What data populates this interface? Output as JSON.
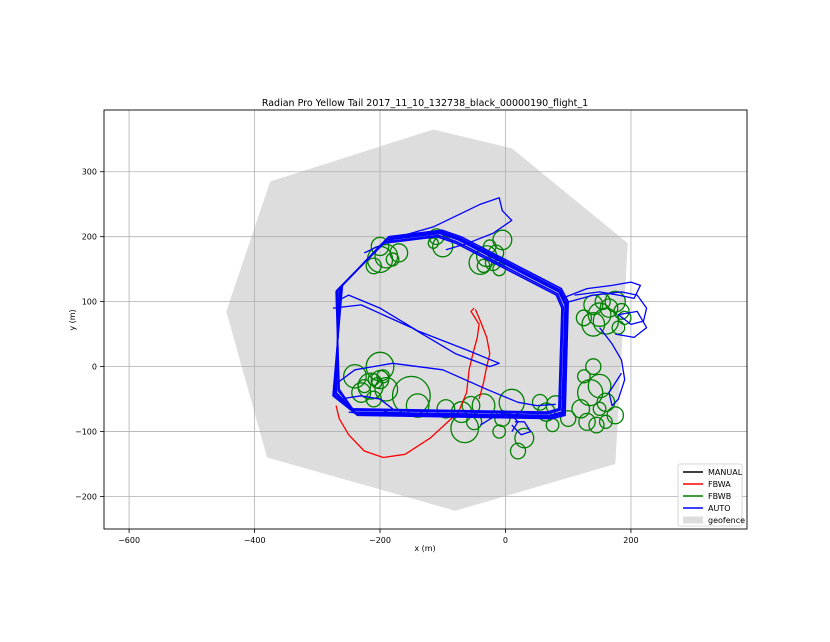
{
  "chart_data": {
    "type": "line",
    "title": "Radian Pro Yellow Tail 2017_11_10_132738_black_00000190_flight_1",
    "xlabel": "x (m)",
    "ylabel": "y (m)",
    "xlim": [
      -640,
      385
    ],
    "ylim": [
      -250,
      395
    ],
    "xticks": [
      -600,
      -400,
      -200,
      0,
      200
    ],
    "yticks": [
      -200,
      -100,
      0,
      100,
      200,
      300
    ],
    "xticklabels": [
      "−600",
      "−400",
      "−200",
      "0",
      "200"
    ],
    "yticklabels": [
      "−200",
      "−100",
      "0",
      "100",
      "200",
      "300"
    ],
    "grid": true,
    "legend_position": "lower-right",
    "legend": [
      {
        "label": "MANUAL",
        "color": "#000000",
        "kind": "line"
      },
      {
        "label": "FBWA",
        "color": "#ff0000",
        "kind": "line"
      },
      {
        "label": "FBWB",
        "color": "#008000",
        "kind": "line"
      },
      {
        "label": "AUTO",
        "color": "#0000ff",
        "kind": "line"
      },
      {
        "label": "geofence",
        "color": "#dddddd",
        "kind": "patch"
      }
    ],
    "geofence": [
      [
        -115,
        365
      ],
      [
        10,
        336
      ],
      [
        195,
        190
      ],
      [
        175,
        -150
      ],
      [
        -80,
        -222
      ],
      [
        -380,
        -140
      ],
      [
        -445,
        85
      ],
      [
        -375,
        285
      ]
    ],
    "series": [
      {
        "name": "AUTO",
        "color": "#0000ff",
        "loops": [
          [
            [
              -265,
              120
            ],
            [
              -190,
              195
            ],
            [
              -105,
              205
            ],
            [
              -75,
              195
            ],
            [
              85,
              115
            ],
            [
              95,
              95
            ],
            [
              90,
              -70
            ],
            [
              70,
              -75
            ],
            [
              -240,
              -70
            ],
            [
              -270,
              -40
            ],
            [
              -265,
              120
            ]
          ],
          [
            [
              -262,
              123
            ],
            [
              -188,
              198
            ],
            [
              -103,
              208
            ],
            [
              -73,
              198
            ],
            [
              87,
              118
            ],
            [
              98,
              98
            ],
            [
              93,
              -73
            ],
            [
              72,
              -78
            ],
            [
              -238,
              -73
            ],
            [
              -273,
              -43
            ],
            [
              -262,
              123
            ]
          ],
          [
            [
              -268,
              118
            ],
            [
              -192,
              192
            ],
            [
              -107,
              202
            ],
            [
              -77,
              192
            ],
            [
              83,
              112
            ],
            [
              92,
              92
            ],
            [
              87,
              -67
            ],
            [
              68,
              -72
            ],
            [
              -242,
              -67
            ],
            [
              -267,
              -37
            ],
            [
              -268,
              118
            ]
          ],
          [
            [
              -260,
              125
            ],
            [
              -186,
              200
            ],
            [
              -101,
              210
            ],
            [
              -71,
              200
            ],
            [
              89,
              120
            ],
            [
              100,
              100
            ],
            [
              95,
              -75
            ],
            [
              74,
              -80
            ],
            [
              -236,
              -75
            ],
            [
              -275,
              -45
            ],
            [
              -260,
              125
            ]
          ],
          [
            [
              -270,
              116
            ],
            [
              -194,
              190
            ],
            [
              -109,
              200
            ],
            [
              -79,
              190
            ],
            [
              81,
              110
            ],
            [
              90,
              90
            ],
            [
              85,
              -65
            ],
            [
              66,
              -70
            ],
            [
              -244,
              -65
            ],
            [
              -265,
              -35
            ],
            [
              -270,
              116
            ]
          ],
          [
            [
              -264,
              121
            ],
            [
              -190,
              196
            ],
            [
              -104,
              206
            ],
            [
              -74,
              196
            ],
            [
              86,
              116
            ],
            [
              96,
              96
            ],
            [
              91,
              -71
            ],
            [
              70,
              -76
            ],
            [
              -239,
              -71
            ],
            [
              -271,
              -41
            ],
            [
              -264,
              121
            ]
          ]
        ],
        "paths": [
          [
            [
              -225,
              175
            ],
            [
              -170,
              200
            ],
            [
              -115,
              215
            ],
            [
              -40,
              250
            ],
            [
              -10,
              260
            ],
            [
              -5,
              240
            ],
            [
              10,
              225
            ],
            [
              -20,
              205
            ],
            [
              -60,
              190
            ],
            [
              -95,
              180
            ]
          ],
          [
            [
              -270,
              100
            ],
            [
              -250,
              110
            ],
            [
              -200,
              90
            ],
            [
              -140,
              55
            ],
            [
              -60,
              25
            ],
            [
              -10,
              5
            ],
            [
              -25,
              0
            ],
            [
              -80,
              20
            ],
            [
              -150,
              60
            ],
            [
              -230,
              95
            ],
            [
              -275,
              90
            ]
          ],
          [
            [
              -275,
              -30
            ],
            [
              -240,
              -5
            ],
            [
              -180,
              5
            ],
            [
              -100,
              -5
            ],
            [
              -30,
              -35
            ],
            [
              20,
              -55
            ],
            [
              50,
              -60
            ],
            [
              80,
              -58
            ]
          ],
          [
            [
              -265,
              -50
            ],
            [
              -230,
              -45
            ],
            [
              -200,
              -50
            ],
            [
              -180,
              -65
            ],
            [
              -205,
              -75
            ],
            [
              -250,
              -70
            ]
          ],
          [
            [
              90,
              105
            ],
            [
              130,
              120
            ],
            [
              170,
              125
            ],
            [
              200,
              130
            ],
            [
              215,
              125
            ],
            [
              205,
              105
            ],
            [
              180,
              110
            ],
            [
              150,
              115
            ],
            [
              110,
              110
            ]
          ],
          [
            [
              95,
              98
            ],
            [
              140,
              110
            ],
            [
              185,
              115
            ],
            [
              210,
              110
            ],
            [
              225,
              90
            ],
            [
              220,
              70
            ],
            [
              200,
              65
            ],
            [
              180,
              80
            ],
            [
              210,
              85
            ],
            [
              225,
              60
            ],
            [
              205,
              45
            ],
            [
              175,
              50
            ]
          ],
          [
            [
              150,
              60
            ],
            [
              170,
              35
            ],
            [
              185,
              10
            ],
            [
              190,
              -20
            ],
            [
              180,
              -50
            ],
            [
              170,
              -60
            ],
            [
              165,
              -40
            ],
            [
              175,
              -25
            ],
            [
              185,
              -10
            ]
          ],
          [
            [
              10,
              -90
            ],
            [
              25,
              -105
            ],
            [
              40,
              -100
            ],
            [
              30,
              -85
            ],
            [
              15,
              -85
            ]
          ],
          [
            [
              -40,
              -90
            ],
            [
              -15,
              -75
            ],
            [
              5,
              -70
            ],
            [
              20,
              -85
            ],
            [
              10,
              -100
            ]
          ]
        ]
      },
      {
        "name": "FBWA",
        "color": "#ff0000",
        "paths": [
          [
            [
              -50,
              90
            ],
            [
              -55,
              85
            ],
            [
              -42,
              65
            ],
            [
              -45,
              45
            ],
            [
              -52,
              20
            ],
            [
              -58,
              -5
            ],
            [
              -62,
              -40
            ],
            [
              -75,
              -70
            ],
            [
              -120,
              -110
            ],
            [
              -160,
              -135
            ],
            [
              -195,
              -140
            ],
            [
              -225,
              -130
            ],
            [
              -250,
              -105
            ],
            [
              -265,
              -80
            ],
            [
              -270,
              -60
            ]
          ],
          [
            [
              -48,
              88
            ],
            [
              -40,
              70
            ],
            [
              -30,
              45
            ],
            [
              -25,
              20
            ],
            [
              -30,
              0
            ],
            [
              -35,
              -25
            ],
            [
              -42,
              -50
            ]
          ]
        ]
      },
      {
        "name": "FBWB",
        "color": "#008000",
        "circles": [
          [
            -190,
            170,
            18
          ],
          [
            -200,
            185,
            14
          ],
          [
            -210,
            155,
            12
          ],
          [
            -180,
            165,
            10
          ],
          [
            -200,
            165,
            20
          ],
          [
            -170,
            175,
            14
          ],
          [
            -110,
            200,
            12
          ],
          [
            -100,
            185,
            16
          ],
          [
            -115,
            190,
            8
          ],
          [
            -25,
            185,
            10
          ],
          [
            -30,
            170,
            16
          ],
          [
            -40,
            160,
            18
          ],
          [
            -5,
            195,
            15
          ],
          [
            -15,
            175,
            12
          ],
          [
            -20,
            160,
            12
          ],
          [
            -10,
            150,
            10
          ],
          [
            -35,
            155,
            10
          ],
          [
            -200,
            -20,
            14
          ],
          [
            -215,
            -30,
            20
          ],
          [
            -190,
            -35,
            18
          ],
          [
            -230,
            -40,
            15
          ],
          [
            -210,
            -50,
            12
          ],
          [
            -200,
            0,
            22
          ],
          [
            -240,
            -15,
            18
          ],
          [
            -225,
            -30,
            10
          ],
          [
            -205,
            -25,
            8
          ],
          [
            -195,
            -15,
            10
          ],
          [
            -210,
            -20,
            9
          ],
          [
            -150,
            -45,
            30
          ],
          [
            -140,
            -60,
            18
          ],
          [
            -95,
            -65,
            14
          ],
          [
            -70,
            -70,
            16
          ],
          [
            -55,
            -60,
            14
          ],
          [
            -35,
            -60,
            18
          ],
          [
            -65,
            -95,
            22
          ],
          [
            -50,
            -85,
            12
          ],
          [
            10,
            -55,
            20
          ],
          [
            -5,
            -80,
            12
          ],
          [
            -10,
            -100,
            10
          ],
          [
            20,
            -130,
            12
          ],
          [
            30,
            -110,
            15
          ],
          [
            55,
            -55,
            12
          ],
          [
            65,
            -70,
            14
          ],
          [
            75,
            -90,
            10
          ],
          [
            80,
            -60,
            15
          ],
          [
            100,
            -80,
            12
          ],
          [
            120,
            -65,
            14
          ],
          [
            130,
            -85,
            13
          ],
          [
            135,
            -40,
            20
          ],
          [
            150,
            -30,
            18
          ],
          [
            160,
            -55,
            14
          ],
          [
            145,
            -90,
            12
          ],
          [
            160,
            -85,
            10
          ],
          [
            175,
            -75,
            13
          ],
          [
            150,
            -65,
            10
          ],
          [
            140,
            95,
            15
          ],
          [
            150,
            80,
            18
          ],
          [
            165,
            90,
            14
          ],
          [
            160,
            70,
            20
          ],
          [
            175,
            100,
            16
          ],
          [
            185,
            85,
            12
          ],
          [
            190,
            75,
            10
          ],
          [
            155,
            100,
            12
          ],
          [
            140,
            65,
            18
          ],
          [
            125,
            75,
            12
          ],
          [
            180,
            60,
            10
          ],
          [
            125,
            -15,
            10
          ],
          [
            140,
            0,
            12
          ]
        ]
      }
    ]
  }
}
